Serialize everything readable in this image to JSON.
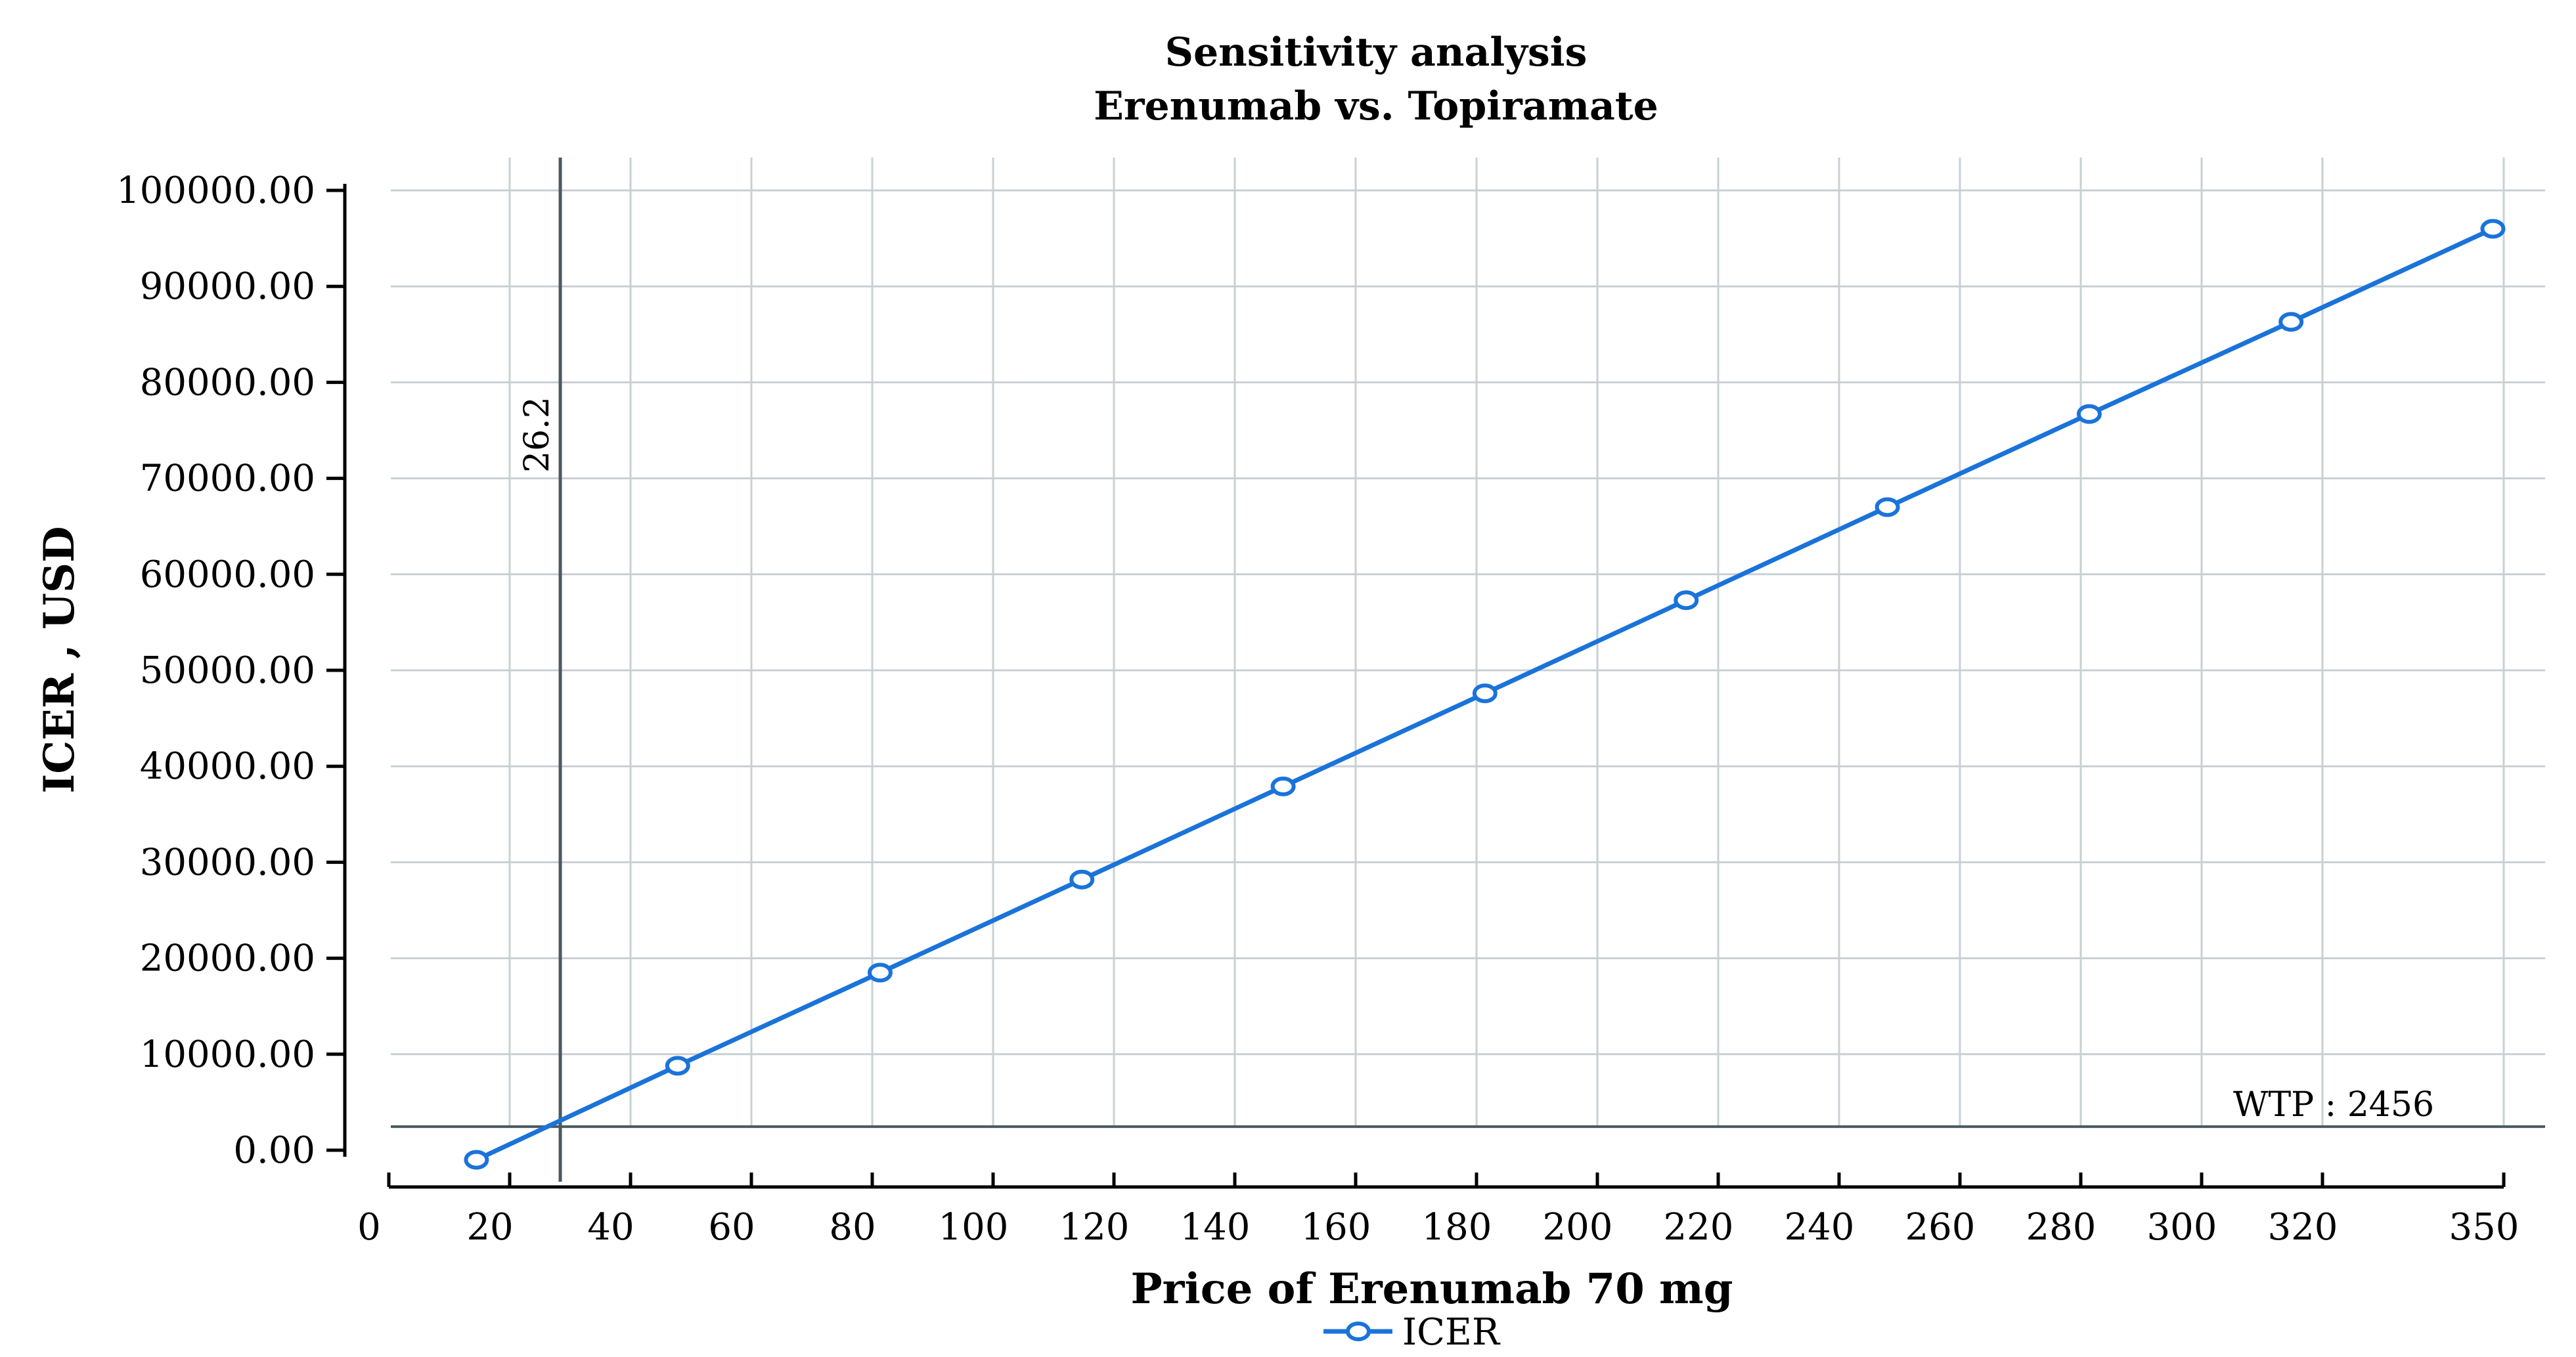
{
  "chart_data": {
    "type": "line",
    "title": [
      "Sensitivity analysis",
      "Erenumab vs. Topiramate"
    ],
    "xlabel": "Price of Erenumab 70 mg",
    "ylabel": "ICER , USD",
    "xlim": [
      0,
      350
    ],
    "ylim": [
      0,
      100000
    ],
    "x_tick_labels": [
      "0",
      "20",
      "40",
      "60",
      "80",
      "100",
      "120",
      "140",
      "160",
      "180",
      "200",
      "220",
      "240",
      "260",
      "280",
      "300",
      "320",
      "350"
    ],
    "x_ticks": [
      0,
      20,
      40,
      60,
      80,
      100,
      120,
      140,
      160,
      180,
      200,
      220,
      240,
      260,
      280,
      300,
      320,
      350
    ],
    "y_tick_labels": [
      "0.00",
      "10000.00",
      "20000.00",
      "30000.00",
      "40000.00",
      "50000.00",
      "60000.00",
      "70000.00",
      "80000.00",
      "90000.00",
      "100000.00"
    ],
    "y_ticks": [
      0,
      10000,
      20000,
      30000,
      40000,
      50000,
      60000,
      70000,
      80000,
      90000,
      100000
    ],
    "grid": true,
    "series": [
      {
        "name": "ICER",
        "color": "#1a73d9",
        "marker": "open-circle",
        "x": [
          14.5,
          47.8,
          81.3,
          114.7,
          148,
          181.4,
          214.7,
          248,
          281.4,
          314.8,
          348.2
        ],
        "y": [
          -1000,
          8800,
          18500,
          28200,
          37900,
          47600,
          57300,
          67000,
          76700,
          86300,
          96000
        ]
      }
    ],
    "reference_lines": {
      "vertical": {
        "x": 26.2,
        "label": "26.2",
        "color": "#4a5a60"
      },
      "horizontal": {
        "y": 2456,
        "label": "WTP : 2456",
        "color": "#4a5a60"
      }
    },
    "legend": {
      "position": "bottom-center"
    }
  }
}
